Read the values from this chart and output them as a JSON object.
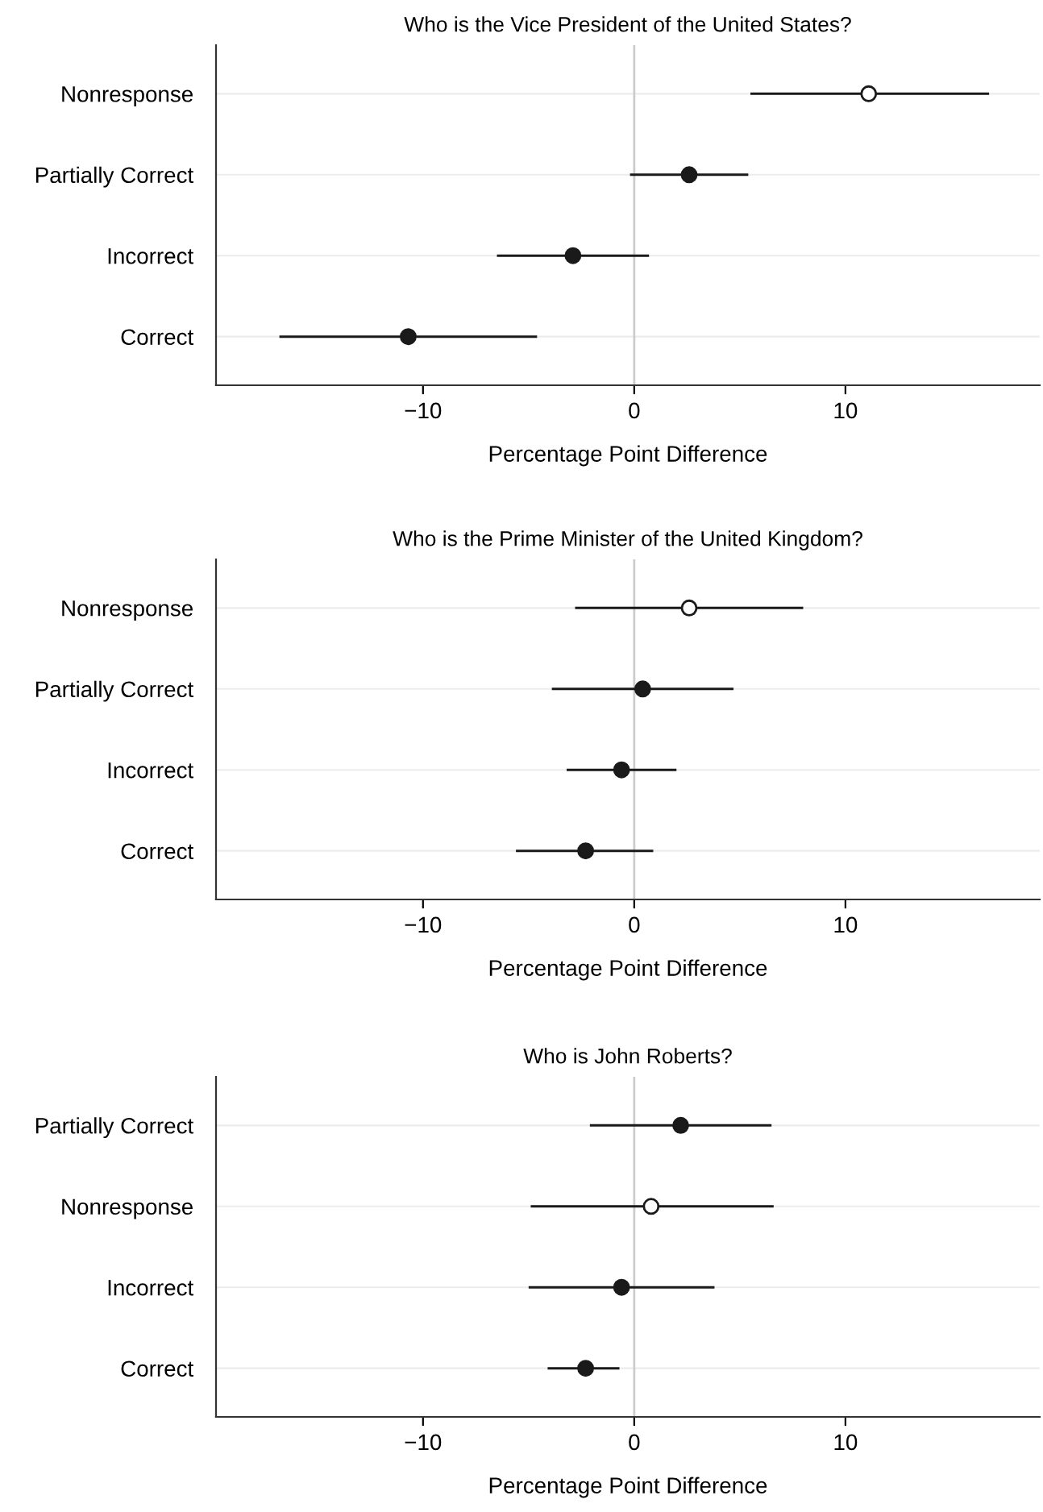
{
  "chart_data": [
    {
      "type": "scatter",
      "orientation": "horizontal",
      "title": "Who is the Vice President of the United States?",
      "xlabel": "Percentage Point Difference",
      "categories": [
        "Nonresponse",
        "Partially Correct",
        "Incorrect",
        "Correct"
      ],
      "series": [
        {
          "color": "#1a1a1a",
          "colors": [
            "#ffffff",
            "#1a1a1a",
            "#1a1a1a",
            "#1a1a1a"
          ],
          "values": [
            11.1,
            2.6,
            -2.9,
            -10.7
          ],
          "errors": [
            [
              5.5,
              16.8
            ],
            [
              -0.2,
              5.4
            ],
            [
              -6.5,
              0.7
            ],
            [
              -16.8,
              -4.6
            ]
          ]
        }
      ],
      "xlim": [
        -19.8,
        19.2
      ],
      "xticks": [
        -10,
        0,
        10
      ],
      "grid": "y",
      "marker": "circle",
      "ref_lines": [
        {
          "axis": "x",
          "value": 0,
          "color": "#cccccc"
        }
      ]
    },
    {
      "type": "scatter",
      "orientation": "horizontal",
      "title": "Who is the Prime Minister of the United Kingdom?",
      "xlabel": "Percentage Point Difference",
      "categories": [
        "Nonresponse",
        "Partially Correct",
        "Incorrect",
        "Correct"
      ],
      "series": [
        {
          "color": "#1a1a1a",
          "colors": [
            "#ffffff",
            "#1a1a1a",
            "#1a1a1a",
            "#1a1a1a"
          ],
          "values": [
            2.6,
            0.4,
            -0.6,
            -2.3
          ],
          "errors": [
            [
              -2.8,
              8.0
            ],
            [
              -3.9,
              4.7
            ],
            [
              -3.2,
              2.0
            ],
            [
              -5.6,
              0.9
            ]
          ]
        }
      ],
      "xlim": [
        -19.8,
        19.2
      ],
      "xticks": [
        -10,
        0,
        10
      ],
      "grid": "y",
      "marker": "circle",
      "ref_lines": [
        {
          "axis": "x",
          "value": 0,
          "color": "#cccccc"
        }
      ]
    },
    {
      "type": "scatter",
      "orientation": "horizontal",
      "title": "Who is John Roberts?",
      "xlabel": "Percentage Point Difference",
      "categories": [
        "Partially Correct",
        "Nonresponse",
        "Incorrect",
        "Correct"
      ],
      "series": [
        {
          "color": "#1a1a1a",
          "colors": [
            "#1a1a1a",
            "#ffffff",
            "#1a1a1a",
            "#1a1a1a"
          ],
          "values": [
            2.2,
            0.8,
            -0.6,
            -2.3
          ],
          "errors": [
            [
              -2.1,
              6.5
            ],
            [
              -4.9,
              6.6
            ],
            [
              -5.0,
              3.8
            ],
            [
              -4.1,
              -0.7
            ]
          ]
        }
      ],
      "xlim": [
        -19.8,
        19.2
      ],
      "xticks": [
        -10,
        0,
        10
      ],
      "grid": "y",
      "marker": "circle",
      "ref_lines": [
        {
          "axis": "x",
          "value": 0,
          "color": "#cccccc"
        }
      ]
    }
  ]
}
